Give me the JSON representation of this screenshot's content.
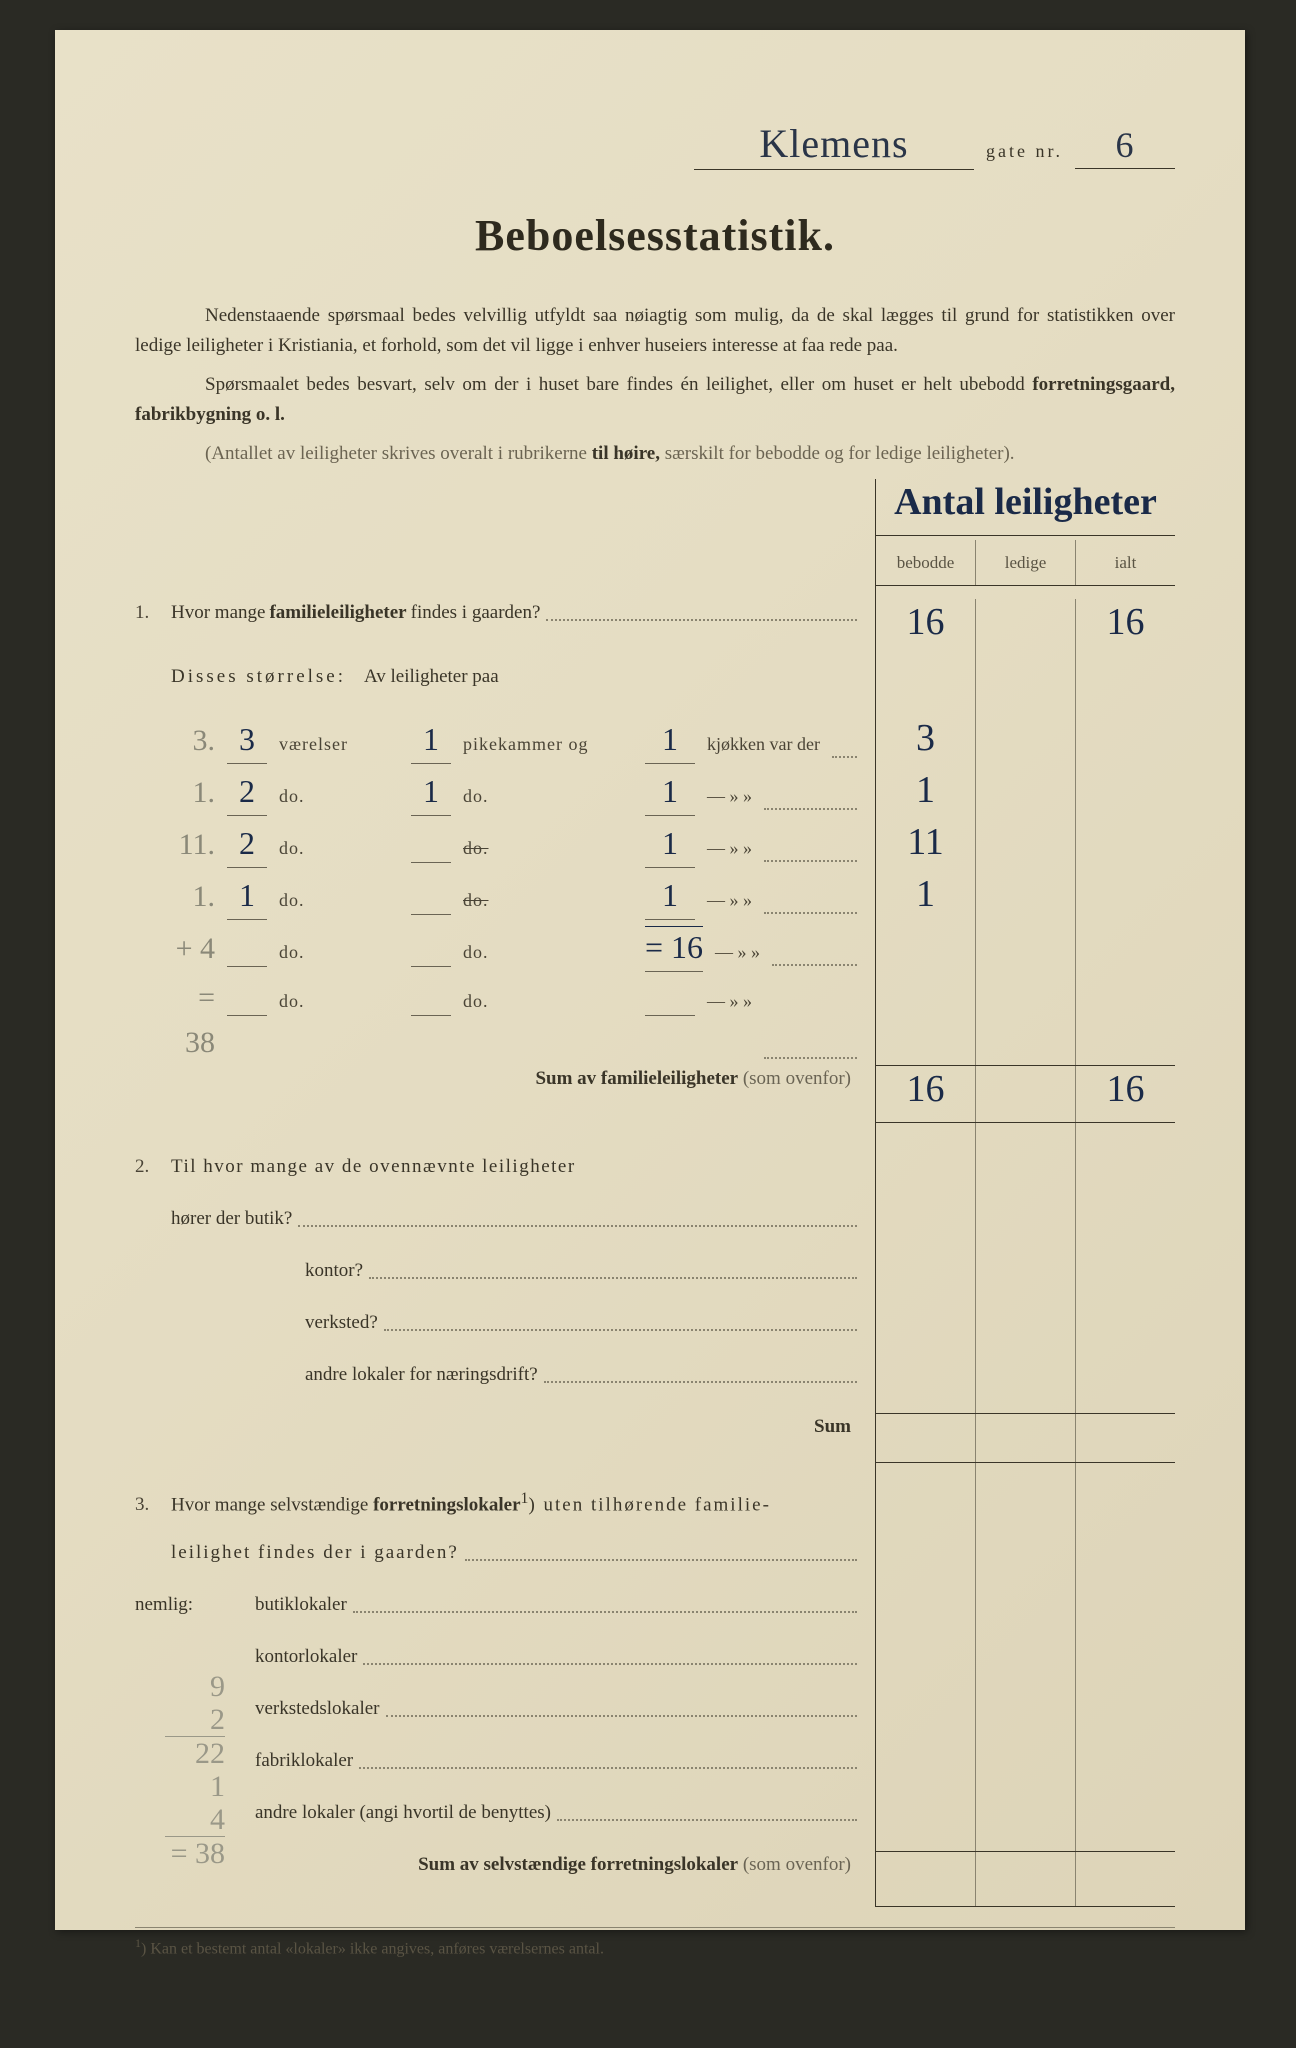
{
  "header": {
    "street_name": "Klemens",
    "gate_label": "gate nr.",
    "gate_nr": "6"
  },
  "title": "Beboelsesstatistik.",
  "intro": {
    "p1": "Nedenstaaende spørsmaal bedes velvillig utfyldt saa nøiagtig som mulig, da de skal lægges til grund for statistikken over ledige leiligheter i Kristiania, et forhold, som det vil ligge i enhver huseiers interesse at faa rede paa.",
    "p2a": "Spørsmaalet bedes besvart, selv om der i huset bare findes én leilighet, eller om huset er helt ubebodd ",
    "p2b": "forretningsgaard, fabrikbygning o. l.",
    "p3a": "(Antallet av leiligheter skrives overalt i rubrikerne ",
    "p3b": "til høire,",
    "p3c": " særskilt for bebodde og for ledige leiligheter)."
  },
  "table_header": {
    "title": "Antal leiligheter",
    "c1": "bebodde",
    "c2": "ledige",
    "c3": "ialt"
  },
  "q1": {
    "num": "1.",
    "text_a": "Hvor mange ",
    "text_b": "familieleiligheter",
    "text_c": " findes i gaarden?",
    "bebodde": "16",
    "ledige": "",
    "ialt": "16",
    "disses": "Disses størrelse:",
    "av": "Av leiligheter paa",
    "rows": [
      {
        "pencil": "3.",
        "v": "3",
        "lbl_v": "værelser",
        "p": "1",
        "lbl_p": "pikekammer og",
        "k": "1",
        "lbl_k": "kjøkken var der",
        "beb": "3",
        "led": "",
        "ialt": ""
      },
      {
        "pencil": "1.",
        "v": "2",
        "lbl_v": "do.",
        "p": "1",
        "lbl_p": "do.",
        "k": "1",
        "lbl_k": "—     »   »",
        "beb": "1",
        "led": "",
        "ialt": ""
      },
      {
        "pencil": "11.",
        "v": "2",
        "lbl_v": "do.",
        "p": "",
        "lbl_p": "do.",
        "pstrike": true,
        "k": "1",
        "lbl_k": "—     »   »",
        "beb": "11",
        "led": "",
        "ialt": ""
      },
      {
        "pencil": "1.",
        "v": "1",
        "lbl_v": "do.",
        "p": "",
        "lbl_p": "do.",
        "pstrike": true,
        "k": "1",
        "lbl_k": "—     »   »",
        "beb": "1",
        "led": "",
        "ialt": ""
      },
      {
        "pencil": "+ 4",
        "v": "",
        "lbl_v": "do.",
        "p": "",
        "lbl_p": "do.",
        "k": "= 16",
        "koverline": true,
        "lbl_k": "—     »   »",
        "beb": "",
        "led": "",
        "ialt": ""
      },
      {
        "pencil": "= 38",
        "v": "",
        "lbl_v": "do.",
        "p": "",
        "lbl_p": "do.",
        "k": "",
        "lbl_k": "—     »   »",
        "beb": "",
        "led": "",
        "ialt": ""
      }
    ],
    "sum_label_a": "Sum av familieleiligheter",
    "sum_label_b": " (som ovenfor)",
    "sum_bebodde": "16",
    "sum_ledige": "",
    "sum_ialt": "16"
  },
  "q2": {
    "num": "2.",
    "line1": "Til hvor mange av de ovennævnte leiligheter",
    "line2": "hører der butik?",
    "rows": [
      "kontor?",
      "verksted?",
      "andre lokaler for næringsdrift?"
    ],
    "sum": "Sum"
  },
  "q3": {
    "num": "3.",
    "line1a": "Hvor mange selvstændige ",
    "line1b": "forretningslokaler",
    "line1sup": "1",
    "line1c": ") uten tilhørende familie-",
    "line2": "leilighet findes der i gaarden?",
    "nemlig": "nemlig:",
    "rows": [
      "butiklokaler",
      "kontorlokaler",
      "verkstedslokaler",
      "fabriklokaler",
      "andre lokaler (angi hvortil de benyttes)"
    ],
    "sum_a": "Sum av selvstændige forretningslokaler",
    "sum_b": " (som ovenfor)"
  },
  "footnote": {
    "sup": "1",
    "text": ") Kan et bestemt antal «lokaler» ikke angives, anføres værelsernes antal."
  },
  "margin_calc": [
    "9",
    "2",
    "22",
    "1",
    "4",
    "= 38"
  ],
  "colors": {
    "paper": "#e5ddc3",
    "ink_print": "#3a3528",
    "ink_hand": "#1a2a48",
    "ink_pencil": "#9a9888"
  }
}
